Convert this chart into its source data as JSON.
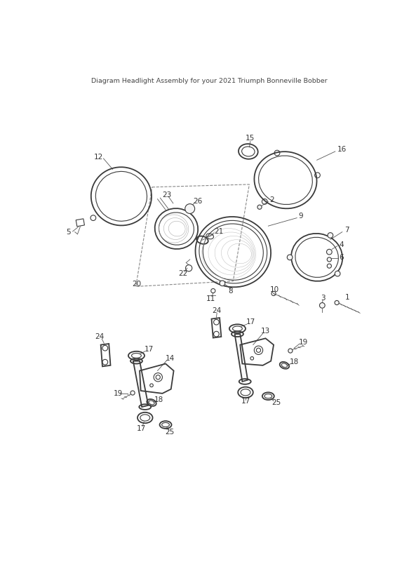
{
  "title": "Diagram Headlight Assembly for your 2021 Triumph Bonneville Bobber",
  "bg_color": "#ffffff",
  "line_color": "#3a3a3a",
  "label_color": "#333333",
  "fig_width": 5.83,
  "fig_height": 8.24,
  "dpi": 100
}
